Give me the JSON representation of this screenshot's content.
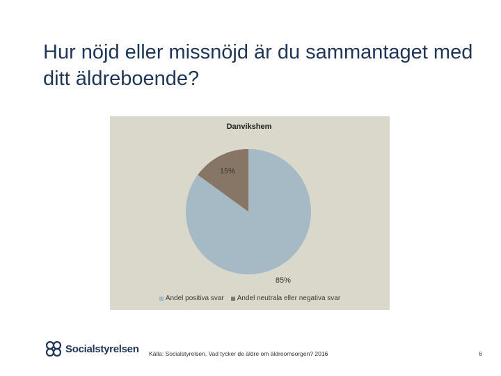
{
  "slide": {
    "title": "Hur nöjd eller missnöjd är du sammantaget med ditt äldreboende?",
    "source": "Källa: Socialstyrelsen, Vad tycker de äldre om äldreomsorgen? 2016",
    "page_number": "6",
    "logo_text": "Socialstyrelsen"
  },
  "chart_data": {
    "type": "pie",
    "title": "Danvikshem",
    "slices": [
      {
        "name": "Andel positiva svar",
        "value": 85,
        "label": "85%",
        "color": "#a6bac6"
      },
      {
        "name": "Andel neutrala eller negativa svar",
        "value": 15,
        "label": "15%",
        "color": "#877565"
      }
    ],
    "legend_position": "bottom",
    "background": "#dad7cb"
  }
}
